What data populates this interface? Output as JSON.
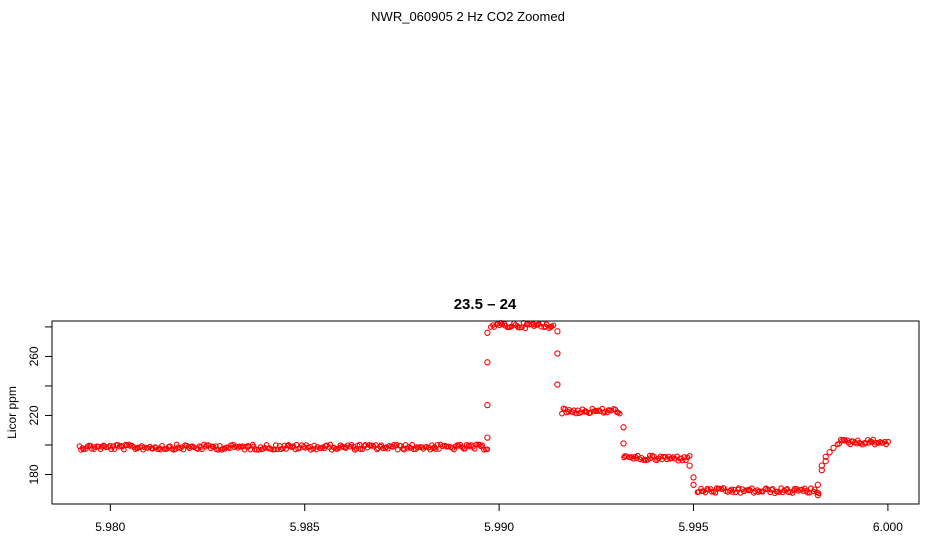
{
  "page": {
    "title": "NWR_060905  2 Hz CO2 Zoomed"
  },
  "chart_data": {
    "type": "scatter",
    "title": "23.5 – 24",
    "xlabel": "",
    "ylabel": "Licor ppm",
    "xlim": [
      5.9785,
      6.0008
    ],
    "ylim": [
      160,
      284
    ],
    "x_ticks": [
      5.98,
      5.985,
      5.99,
      5.995,
      6.0
    ],
    "x_tick_labels": [
      "5.980",
      "5.985",
      "5.990",
      "5.995",
      "6.000"
    ],
    "y_ticks": [
      180,
      220,
      260
    ],
    "y_tick_labels": [
      "180",
      "220",
      "260"
    ],
    "y_minor_ticks": [
      200,
      240,
      280
    ],
    "grid": false,
    "marker": "open-circle",
    "marker_color": "#ff0000",
    "series": [
      {
        "levels": [
          {
            "x_start": 5.9792,
            "x_end": 5.9897,
            "y": 198.5
          },
          {
            "x_start": 5.9898,
            "x_end": 5.9914,
            "y": 281
          },
          {
            "x_start": 5.9916,
            "x_end": 5.9931,
            "y": 223
          },
          {
            "x_start": 5.9932,
            "x_end": 5.9949,
            "y": 191
          },
          {
            "x_start": 5.9951,
            "x_end": 5.9982,
            "y": 169
          },
          {
            "x_start": 5.9987,
            "x_end": 6.0,
            "y": 202
          }
        ],
        "transitions": [
          {
            "x": 5.9897,
            "y": 205
          },
          {
            "x": 5.9897,
            "y": 227
          },
          {
            "x": 5.9897,
            "y": 256
          },
          {
            "x": 5.9897,
            "y": 276
          },
          {
            "x": 5.9915,
            "y": 277
          },
          {
            "x": 5.9915,
            "y": 262
          },
          {
            "x": 5.9915,
            "y": 241
          },
          {
            "x": 5.9932,
            "y": 212
          },
          {
            "x": 5.9932,
            "y": 201
          },
          {
            "x": 5.9949,
            "y": 186
          },
          {
            "x": 5.995,
            "y": 178
          },
          {
            "x": 5.995,
            "y": 173
          },
          {
            "x": 5.9982,
            "y": 166
          },
          {
            "x": 5.9982,
            "y": 173
          },
          {
            "x": 5.9983,
            "y": 183
          },
          {
            "x": 5.9983,
            "y": 186
          },
          {
            "x": 5.9984,
            "y": 189
          },
          {
            "x": 5.9984,
            "y": 192
          },
          {
            "x": 5.9985,
            "y": 195
          },
          {
            "x": 5.9986,
            "y": 198
          }
        ]
      }
    ]
  }
}
